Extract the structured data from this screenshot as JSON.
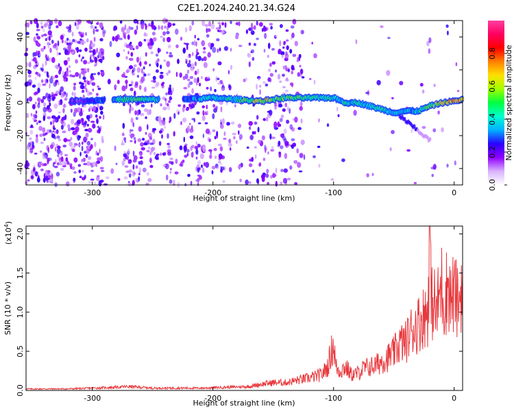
{
  "title": "C2E1.2024.240.21.34.G24",
  "chart_data": [
    {
      "type": "heatmap",
      "xlabel": "Height of straight line (km)",
      "ylabel": "Frequency (Hz)",
      "xlim": [
        -355,
        7
      ],
      "ylim": [
        -50,
        50
      ],
      "xticks": [
        -300,
        -200,
        -100,
        0
      ],
      "xtick_labels": [
        "-300",
        "-200",
        "-100",
        "0"
      ],
      "yticks": [
        -40,
        -20,
        0,
        20,
        40
      ],
      "ytick_labels": [
        "-40",
        "-20",
        "0",
        "20",
        "40"
      ],
      "colorbar": {
        "label": "Normalized spectral amplitude",
        "range": [
          0,
          1
        ],
        "ticks": [
          0.0,
          0.2,
          0.4,
          0.6,
          0.8
        ],
        "tick_labels": [
          "0.0",
          "0.2",
          "0.4",
          "0.6",
          "0.8"
        ],
        "colors": [
          "#ffffff",
          "#d9b3ff",
          "#8f00ff",
          "#2a00ff",
          "#00b0ff",
          "#00ffd0",
          "#00ff40",
          "#a0ff00",
          "#ffe000",
          "#ff8000",
          "#ff0000",
          "#ff0060",
          "#ff40a0"
        ]
      },
      "ridge": {
        "height_km": [
          -310,
          -280,
          -260,
          -230,
          -200,
          -180,
          -160,
          -140,
          -120,
          -100,
          -90,
          -80,
          -70,
          -60,
          -50,
          -40,
          -30,
          -20,
          -10,
          0,
          7
        ],
        "frequency_hz": [
          1,
          2,
          2,
          2,
          3,
          2,
          1,
          3,
          3,
          3,
          0,
          0,
          -2,
          -4,
          -6,
          -5,
          -5,
          -2,
          0,
          1,
          2
        ],
        "peak_amplitude": [
          0.2,
          0.5,
          0.6,
          0.3,
          0.5,
          0.5,
          0.8,
          0.6,
          0.6,
          0.5,
          0.5,
          0.5,
          0.5,
          0.5,
          0.4,
          0.4,
          0.5,
          0.6,
          0.8,
          0.9,
          0.7
        ]
      }
    },
    {
      "type": "line",
      "xlabel": "Height of straight line (km)",
      "ylabel": "SNR (10 * v/v)",
      "y_scale_note": "(x10",
      "y_scale_exp": "4",
      "y_scale_close": ")",
      "xlim": [
        -355,
        7
      ],
      "ylim": [
        0,
        2.1
      ],
      "xticks": [
        -300,
        -200,
        -100,
        0
      ],
      "xtick_labels": [
        "-300",
        "-200",
        "-100",
        "0"
      ],
      "yticks": [
        0.0,
        0.5,
        1.0,
        1.5,
        2.0
      ],
      "ytick_labels": [
        "0.0",
        "0.5",
        "1.0",
        "1.5",
        "2.0"
      ],
      "series": [
        {
          "color": "#e8383d",
          "x": [
            -355,
            -340,
            -320,
            -300,
            -280,
            -270,
            -250,
            -230,
            -210,
            -190,
            -170,
            -160,
            -150,
            -140,
            -130,
            -120,
            -110,
            -105,
            -100,
            -98,
            -95,
            -90,
            -85,
            -80,
            -75,
            -70,
            -65,
            -60,
            -55,
            -50,
            -45,
            -40,
            -35,
            -30,
            -25,
            -22,
            -20,
            -19,
            -17,
            -15,
            -12,
            -10,
            -8,
            -5,
            -3,
            0,
            3,
            5,
            7
          ],
          "y": [
            0.02,
            0.02,
            0.02,
            0.03,
            0.04,
            0.05,
            0.03,
            0.03,
            0.03,
            0.04,
            0.05,
            0.08,
            0.1,
            0.1,
            0.13,
            0.16,
            0.2,
            0.3,
            0.6,
            0.3,
            0.25,
            0.3,
            0.2,
            0.22,
            0.28,
            0.3,
            0.32,
            0.38,
            0.42,
            0.48,
            0.6,
            0.62,
            0.78,
            0.85,
            0.95,
            1.0,
            2.1,
            1.05,
            1.2,
            0.95,
            1.25,
            1.35,
            1.1,
            1.4,
            1.15,
            1.25,
            1.1,
            1.2,
            1.55
          ]
        }
      ]
    }
  ]
}
